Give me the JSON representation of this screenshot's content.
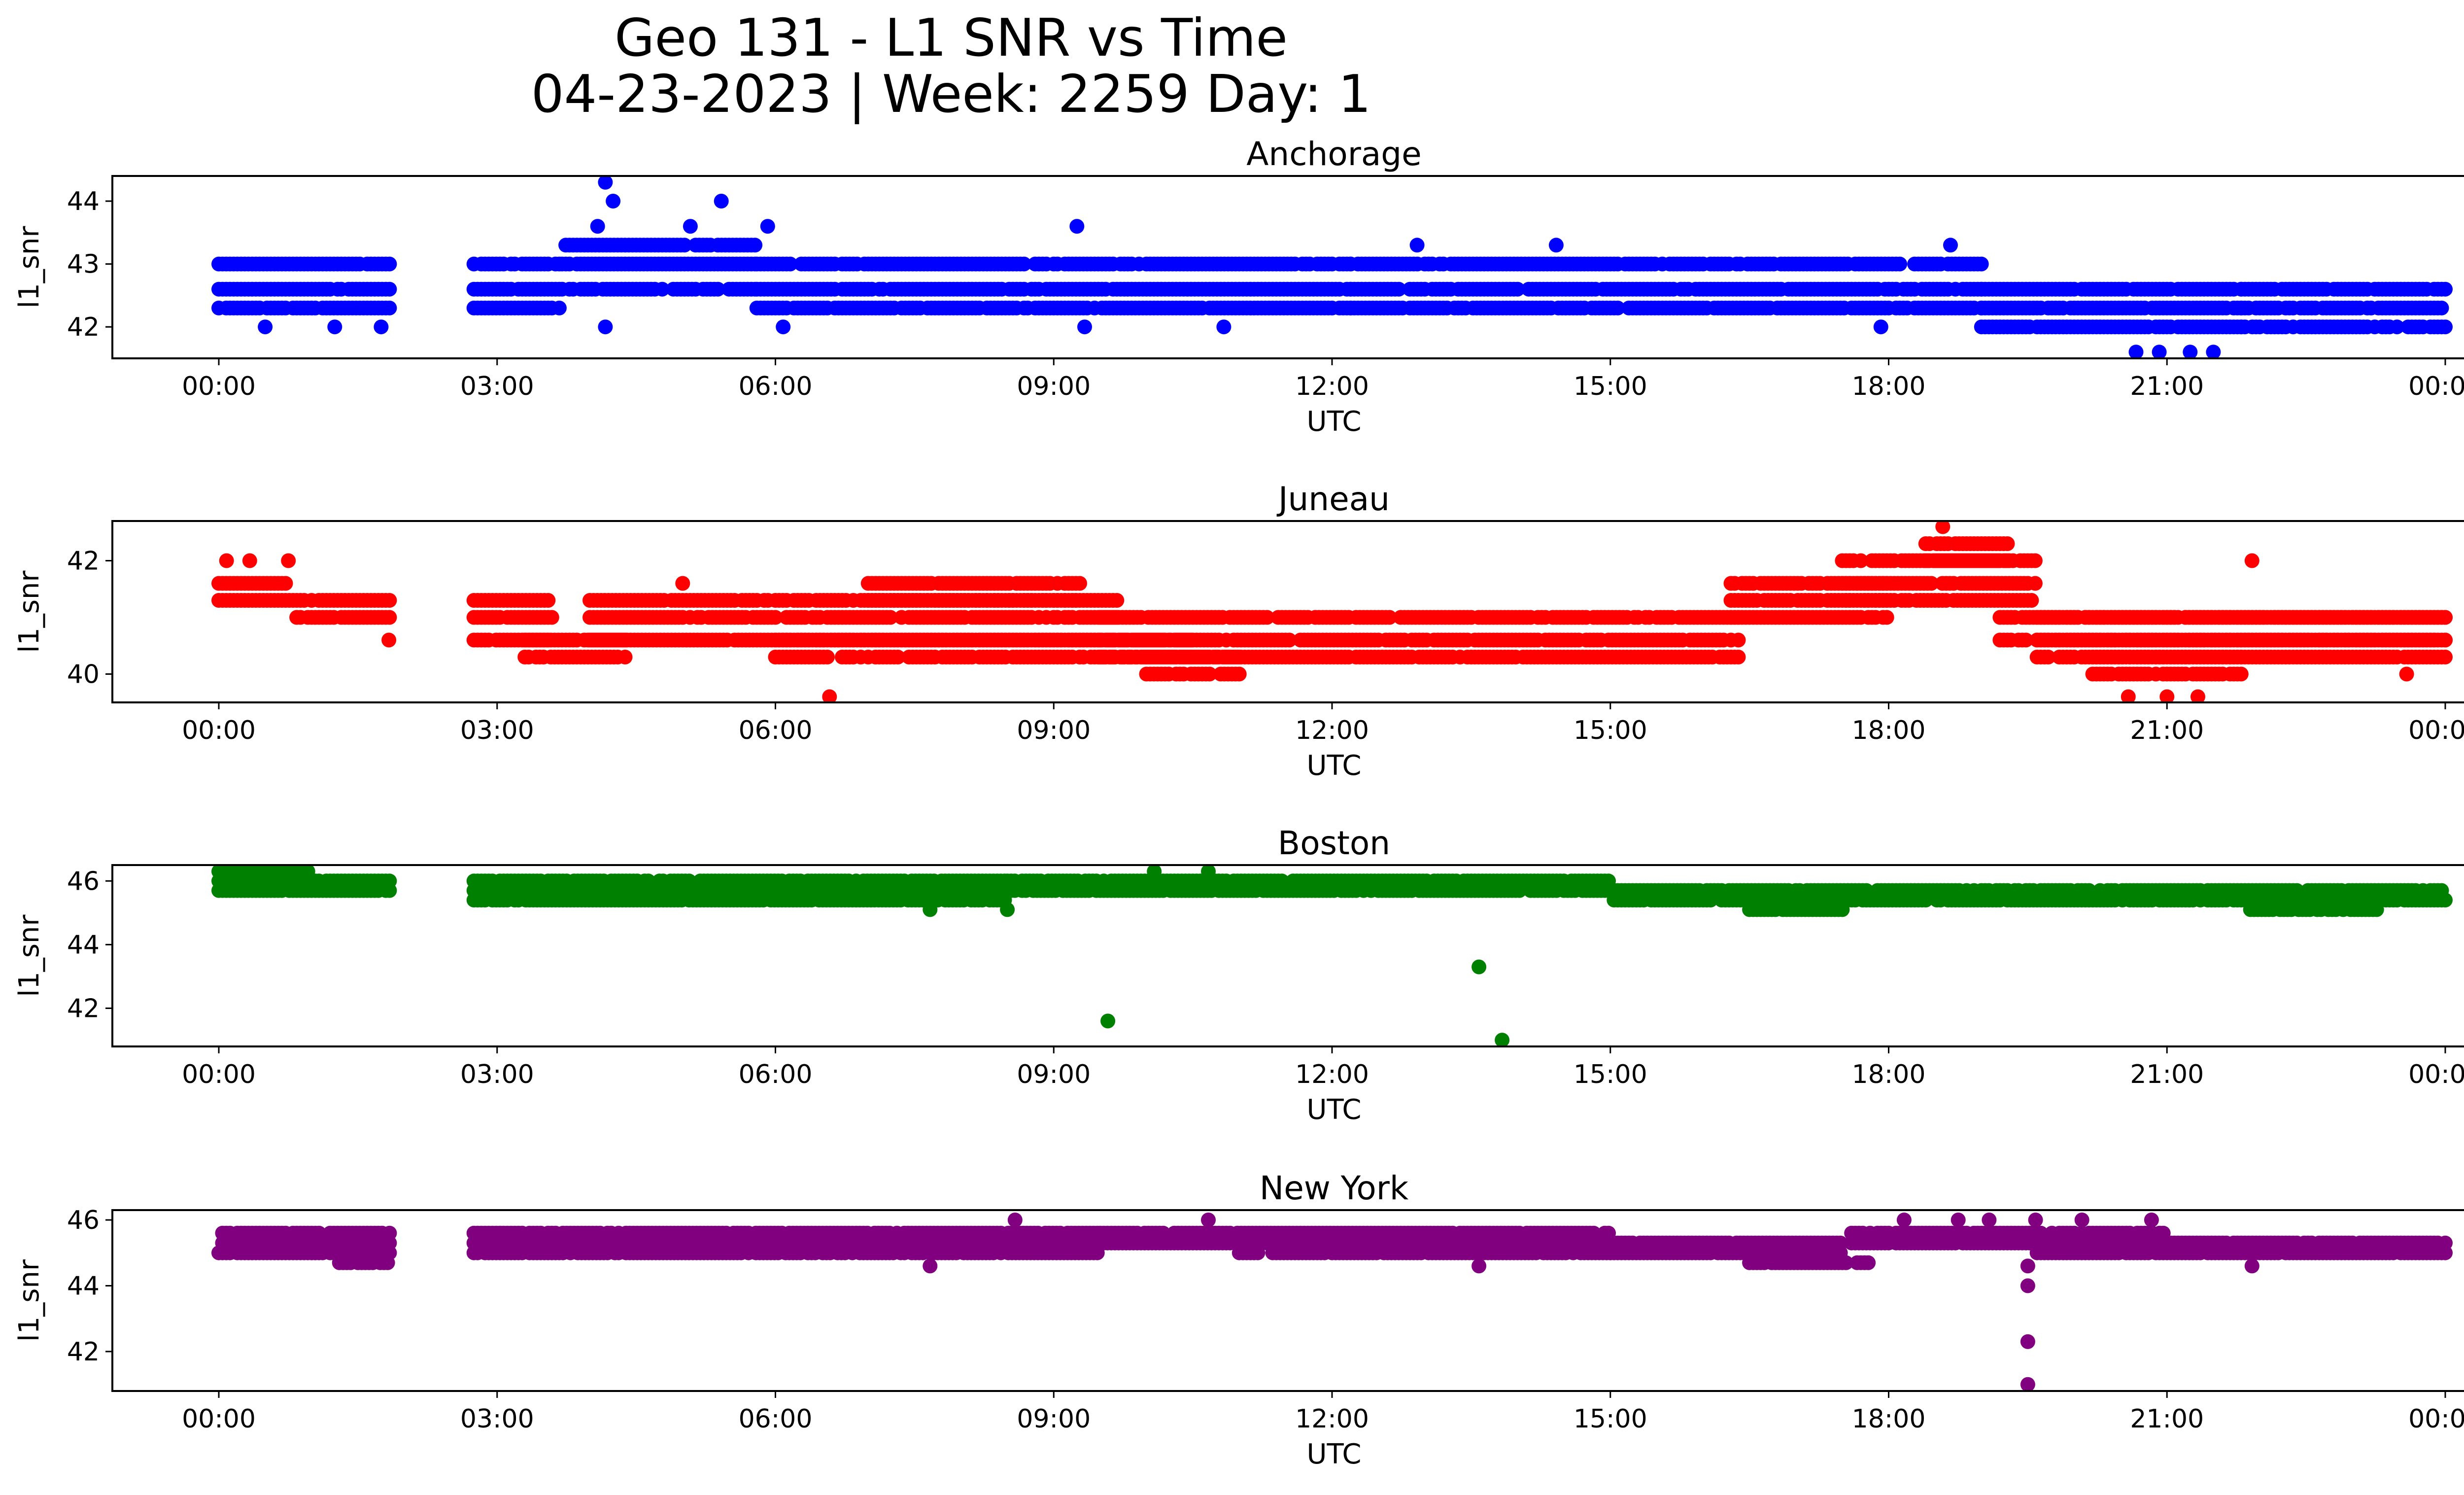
{
  "figure": {
    "title_line1": "Geo 131 - L1 SNR vs Time",
    "title_line2": "04-23-2023 | Week: 2259 Day: 1"
  },
  "chart_data": [
    {
      "type": "scatter",
      "title": "Anchorage",
      "xlabel": "UTC",
      "ylabel": "l1_snr",
      "color": "#0000ff",
      "xlim": [
        "00:00",
        "24:00"
      ],
      "ylim": [
        41.5,
        44.4
      ],
      "yticks": [
        "42",
        "43",
        "44"
      ],
      "xticks": [
        "00:00",
        "03:00",
        "06:00",
        "09:00",
        "12:00",
        "15:00",
        "18:00",
        "21:00",
        "00:00"
      ],
      "segments": [
        {
          "t": [
            0.0,
            1.85
          ],
          "levels": [
            42.3,
            42.6,
            43.0
          ]
        },
        {
          "t": [
            2.75,
            3.7
          ],
          "levels": [
            42.3,
            42.6,
            43.0
          ]
        },
        {
          "t": [
            3.7,
            5.8
          ],
          "levels": [
            42.6,
            43.0,
            43.3
          ]
        },
        {
          "t": [
            5.8,
            12.2
          ],
          "levels": [
            42.3,
            42.6,
            43.0
          ]
        },
        {
          "t": [
            12.2,
            19.0
          ],
          "levels": [
            42.3,
            42.6,
            43.0
          ]
        },
        {
          "t": [
            19.0,
            21.8
          ],
          "levels": [
            42.0,
            42.3,
            42.6
          ]
        },
        {
          "t": [
            21.8,
            24.0
          ],
          "levels": [
            42.0,
            42.3,
            42.6
          ]
        }
      ],
      "outliers": [
        {
          "x": "00:30",
          "y": 42.0
        },
        {
          "x": "01:15",
          "y": 42.0
        },
        {
          "x": "01:45",
          "y": 42.0
        },
        {
          "x": "04:10",
          "y": 44.3
        },
        {
          "x": "04:15",
          "y": 44.0
        },
        {
          "x": "04:05",
          "y": 43.6
        },
        {
          "x": "04:10",
          "y": 42.0
        },
        {
          "x": "05:25",
          "y": 44.0
        },
        {
          "x": "05:05",
          "y": 43.6
        },
        {
          "x": "05:55",
          "y": 43.6
        },
        {
          "x": "06:05",
          "y": 42.0
        },
        {
          "x": "09:15",
          "y": 43.6
        },
        {
          "x": "09:20",
          "y": 42.0
        },
        {
          "x": "10:50",
          "y": 42.0
        },
        {
          "x": "12:55",
          "y": 43.3
        },
        {
          "x": "14:25",
          "y": 43.3
        },
        {
          "x": "17:55",
          "y": 42.0
        },
        {
          "x": "18:40",
          "y": 43.3
        },
        {
          "x": "20:40",
          "y": 41.6
        },
        {
          "x": "20:55",
          "y": 41.6
        },
        {
          "x": "21:15",
          "y": 41.6
        },
        {
          "x": "21:30",
          "y": 41.6
        }
      ]
    },
    {
      "type": "scatter",
      "title": "Juneau",
      "xlabel": "UTC",
      "ylabel": "l1_snr",
      "color": "#ff0000",
      "xlim": [
        "00:00",
        "24:00"
      ],
      "ylim": [
        39.5,
        42.7
      ],
      "yticks": [
        "40",
        "42"
      ],
      "xticks": [
        "00:00",
        "03:00",
        "06:00",
        "09:00",
        "12:00",
        "15:00",
        "18:00",
        "21:00",
        "00:00"
      ],
      "segments": [
        {
          "t": [
            0.0,
            0.8
          ],
          "levels": [
            41.3,
            41.6
          ]
        },
        {
          "t": [
            0.8,
            1.85
          ],
          "levels": [
            41.0,
            41.3
          ]
        },
        {
          "t": [
            2.75,
            3.6
          ],
          "levels": [
            40.6,
            41.0,
            41.3
          ]
        },
        {
          "t": [
            3.3,
            4.4
          ],
          "levels": [
            40.3,
            40.6
          ]
        },
        {
          "t": [
            4.0,
            9.7
          ],
          "levels": [
            40.6,
            41.0,
            41.3
          ]
        },
        {
          "t": [
            6.0,
            10.5
          ],
          "levels": [
            40.3,
            40.6
          ]
        },
        {
          "t": [
            7.0,
            9.3
          ],
          "levels": [
            41.3,
            41.6
          ]
        },
        {
          "t": [
            9.5,
            16.4
          ],
          "levels": [
            40.3,
            40.6,
            41.0
          ]
        },
        {
          "t": [
            10.0,
            11.0
          ],
          "levels": [
            40.0,
            40.3
          ]
        },
        {
          "t": [
            16.3,
            18.0
          ],
          "levels": [
            41.0,
            41.3,
            41.6
          ]
        },
        {
          "t": [
            17.5,
            19.6
          ],
          "levels": [
            41.3,
            41.6,
            42.0
          ]
        },
        {
          "t": [
            18.4,
            19.3
          ],
          "levels": [
            42.0,
            42.3
          ]
        },
        {
          "t": [
            19.2,
            24.0
          ],
          "levels": [
            40.6,
            41.0
          ]
        },
        {
          "t": [
            19.6,
            24.0
          ],
          "levels": [
            40.3,
            40.6,
            41.0
          ]
        },
        {
          "t": [
            20.2,
            21.8
          ],
          "levels": [
            40.0,
            40.3
          ]
        }
      ],
      "outliers": [
        {
          "x": "00:05",
          "y": 42.0
        },
        {
          "x": "00:20",
          "y": 42.0
        },
        {
          "x": "00:45",
          "y": 42.0
        },
        {
          "x": "01:50",
          "y": 40.6
        },
        {
          "x": "05:00",
          "y": 41.6
        },
        {
          "x": "06:35",
          "y": 39.6
        },
        {
          "x": "18:35",
          "y": 42.6
        },
        {
          "x": "20:35",
          "y": 39.6
        },
        {
          "x": "21:00",
          "y": 39.6
        },
        {
          "x": "21:20",
          "y": 39.6
        },
        {
          "x": "21:55",
          "y": 42.0
        },
        {
          "x": "23:35",
          "y": 40.0
        }
      ]
    },
    {
      "type": "scatter",
      "title": "Boston",
      "xlabel": "UTC",
      "ylabel": "l1_snr",
      "color": "#008000",
      "xlim": [
        "00:00",
        "24:00"
      ],
      "ylim": [
        40.8,
        46.5
      ],
      "yticks": [
        "42",
        "44",
        "46"
      ],
      "xticks": [
        "00:00",
        "03:00",
        "06:00",
        "09:00",
        "12:00",
        "15:00",
        "18:00",
        "21:00",
        "00:00"
      ],
      "segments": [
        {
          "t": [
            0.0,
            1.0
          ],
          "levels": [
            45.7,
            46.0,
            46.3
          ]
        },
        {
          "t": [
            1.0,
            1.85
          ],
          "levels": [
            45.7,
            46.0
          ]
        },
        {
          "t": [
            2.75,
            8.5
          ],
          "levels": [
            45.4,
            45.7,
            46.0
          ]
        },
        {
          "t": [
            8.5,
            15.0
          ],
          "levels": [
            45.7,
            46.0
          ]
        },
        {
          "t": [
            15.0,
            24.0
          ],
          "levels": [
            45.4,
            45.7
          ]
        },
        {
          "t": [
            16.5,
            17.5
          ],
          "levels": [
            45.1,
            45.4
          ]
        },
        {
          "t": [
            21.9,
            23.3
          ],
          "levels": [
            45.1,
            45.4
          ]
        }
      ],
      "outliers": [
        {
          "x": "09:35",
          "y": 41.6
        },
        {
          "x": "13:35",
          "y": 43.3
        },
        {
          "x": "13:50",
          "y": 41.0
        },
        {
          "x": "10:05",
          "y": 46.3
        },
        {
          "x": "10:40",
          "y": 46.3
        },
        {
          "x": "07:40",
          "y": 45.1
        },
        {
          "x": "08:30",
          "y": 45.1
        }
      ]
    },
    {
      "type": "scatter",
      "title": "New York",
      "xlabel": "UTC",
      "ylabel": "l1_snr",
      "color": "#800080",
      "xlim": [
        "00:00",
        "24:00"
      ],
      "ylim": [
        40.8,
        46.3
      ],
      "yticks": [
        "42",
        "44",
        "46"
      ],
      "xticks": [
        "00:00",
        "03:00",
        "06:00",
        "09:00",
        "12:00",
        "15:00",
        "18:00",
        "21:00",
        "00:00"
      ],
      "segments": [
        {
          "t": [
            0.0,
            1.85
          ],
          "levels": [
            45.0,
            45.3,
            45.6
          ]
        },
        {
          "t": [
            1.3,
            1.85
          ],
          "levels": [
            44.7
          ]
        },
        {
          "t": [
            2.75,
            9.5
          ],
          "levels": [
            45.0,
            45.3,
            45.6
          ]
        },
        {
          "t": [
            9.5,
            15.0
          ],
          "levels": [
            45.3,
            45.6
          ]
        },
        {
          "t": [
            11.0,
            15.0
          ],
          "levels": [
            45.0
          ]
        },
        {
          "t": [
            15.0,
            17.5
          ],
          "levels": [
            45.0,
            45.3
          ]
        },
        {
          "t": [
            16.5,
            17.8
          ],
          "levels": [
            44.7
          ]
        },
        {
          "t": [
            17.6,
            21.0
          ],
          "levels": [
            45.3,
            45.6
          ]
        },
        {
          "t": [
            19.6,
            24.0
          ],
          "levels": [
            45.0,
            45.3
          ]
        }
      ],
      "outliers": [
        {
          "x": "08:35",
          "y": 46.0
        },
        {
          "x": "10:40",
          "y": 46.0
        },
        {
          "x": "18:10",
          "y": 46.0
        },
        {
          "x": "18:45",
          "y": 46.0
        },
        {
          "x": "19:05",
          "y": 46.0
        },
        {
          "x": "19:35",
          "y": 46.0
        },
        {
          "x": "20:05",
          "y": 46.0
        },
        {
          "x": "20:50",
          "y": 46.0
        },
        {
          "x": "19:30",
          "y": 44.6
        },
        {
          "x": "19:30",
          "y": 44.0
        },
        {
          "x": "19:30",
          "y": 42.3
        },
        {
          "x": "19:30",
          "y": 41.0
        },
        {
          "x": "07:40",
          "y": 44.6
        },
        {
          "x": "21:55",
          "y": 44.6
        },
        {
          "x": "13:35",
          "y": 44.6
        }
      ]
    }
  ]
}
